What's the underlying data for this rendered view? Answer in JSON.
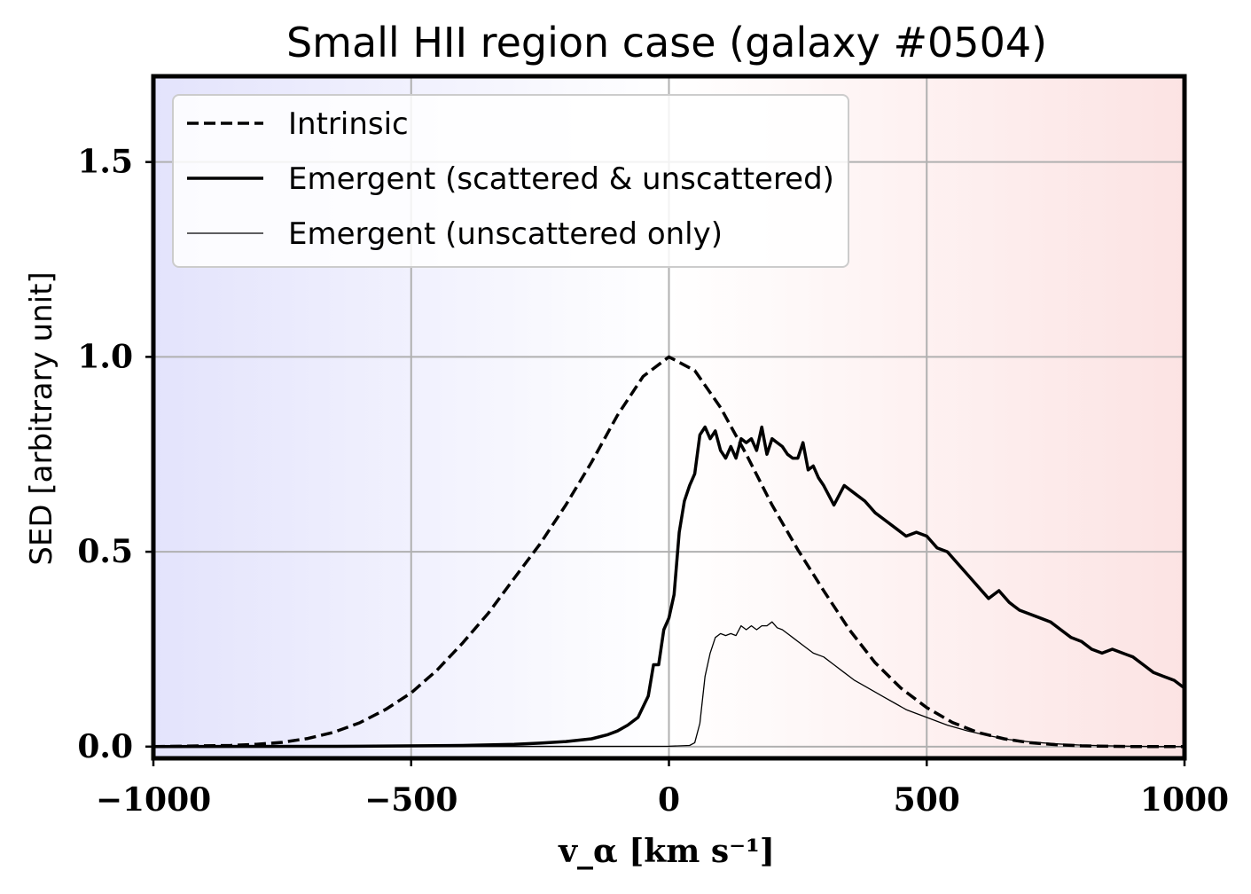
{
  "chart_data": {
    "type": "line",
    "title": "Small HII region case (galaxy #0504)",
    "xlabel": "v_α [km s⁻¹]",
    "ylabel": "SED [arbitrary unit]",
    "xlim": [
      -1000,
      1000
    ],
    "ylim": [
      -0.03,
      1.72
    ],
    "xticks": [
      -1000,
      -500,
      0,
      500,
      1000
    ],
    "xtick_labels": [
      "−1000",
      "−500",
      "0",
      "500",
      "1000"
    ],
    "yticks": [
      0.0,
      0.5,
      1.0,
      1.5
    ],
    "ytick_labels": [
      "0.0",
      "0.5",
      "1.0",
      "1.5"
    ],
    "grid": true,
    "legend_position": "top-left",
    "background": {
      "left_color": "#e3e3fc",
      "middle_color": "#ffffff",
      "right_color": "#fce3e3"
    },
    "series": [
      {
        "name": "Intrinsic",
        "style": "dashed",
        "x": [
          -1000,
          -950,
          -900,
          -850,
          -800,
          -750,
          -700,
          -650,
          -600,
          -550,
          -500,
          -450,
          -400,
          -350,
          -300,
          -250,
          -200,
          -150,
          -100,
          -50,
          0,
          50,
          100,
          150,
          200,
          250,
          300,
          350,
          400,
          450,
          500,
          550,
          600,
          650,
          700,
          750,
          800,
          850,
          900,
          950,
          1000
        ],
        "y": [
          0.0,
          0.001,
          0.002,
          0.003,
          0.006,
          0.011,
          0.021,
          0.037,
          0.061,
          0.095,
          0.138,
          0.196,
          0.266,
          0.343,
          0.432,
          0.52,
          0.62,
          0.73,
          0.85,
          0.95,
          1.0,
          0.965,
          0.87,
          0.75,
          0.62,
          0.505,
          0.4,
          0.3,
          0.215,
          0.15,
          0.1,
          0.062,
          0.036,
          0.02,
          0.01,
          0.005,
          0.002,
          0.001,
          0.0,
          0.0,
          0.0
        ]
      },
      {
        "name": "Emergent (scattered & unscattered)",
        "style": "solid",
        "x": [
          -1000,
          -600,
          -400,
          -300,
          -250,
          -200,
          -150,
          -120,
          -100,
          -80,
          -60,
          -40,
          -30,
          -20,
          -10,
          0,
          10,
          20,
          30,
          40,
          50,
          60,
          70,
          80,
          90,
          100,
          110,
          120,
          130,
          140,
          150,
          160,
          170,
          180,
          190,
          200,
          210,
          220,
          230,
          240,
          250,
          260,
          270,
          280,
          290,
          300,
          320,
          340,
          360,
          380,
          400,
          420,
          440,
          460,
          480,
          500,
          520,
          540,
          560,
          580,
          600,
          620,
          640,
          660,
          680,
          700,
          720,
          740,
          760,
          780,
          800,
          820,
          840,
          860,
          880,
          900,
          920,
          940,
          960,
          980,
          1000
        ],
        "y": [
          0.0,
          0.001,
          0.003,
          0.006,
          0.009,
          0.013,
          0.02,
          0.03,
          0.04,
          0.055,
          0.075,
          0.13,
          0.21,
          0.21,
          0.3,
          0.33,
          0.39,
          0.55,
          0.63,
          0.67,
          0.7,
          0.8,
          0.82,
          0.79,
          0.81,
          0.76,
          0.74,
          0.77,
          0.74,
          0.79,
          0.78,
          0.79,
          0.76,
          0.82,
          0.75,
          0.79,
          0.78,
          0.77,
          0.75,
          0.74,
          0.74,
          0.78,
          0.71,
          0.72,
          0.69,
          0.67,
          0.62,
          0.67,
          0.65,
          0.63,
          0.6,
          0.58,
          0.56,
          0.54,
          0.55,
          0.54,
          0.51,
          0.5,
          0.47,
          0.44,
          0.41,
          0.38,
          0.4,
          0.37,
          0.35,
          0.34,
          0.33,
          0.32,
          0.3,
          0.28,
          0.27,
          0.25,
          0.24,
          0.25,
          0.24,
          0.23,
          0.21,
          0.19,
          0.18,
          0.17,
          0.15
        ]
      },
      {
        "name": "Emergent (unscattered only)",
        "style": "thin",
        "x": [
          -1000,
          0,
          40,
          50,
          60,
          70,
          80,
          90,
          100,
          110,
          120,
          130,
          140,
          150,
          160,
          170,
          180,
          190,
          200,
          210,
          220,
          240,
          260,
          280,
          300,
          320,
          340,
          360,
          380,
          400,
          420,
          440,
          460,
          480,
          500,
          540,
          580,
          620,
          660,
          700,
          750,
          800,
          850,
          900,
          950,
          1000
        ],
        "y": [
          0.0,
          0.001,
          0.003,
          0.01,
          0.06,
          0.18,
          0.24,
          0.28,
          0.29,
          0.285,
          0.29,
          0.285,
          0.31,
          0.3,
          0.31,
          0.3,
          0.31,
          0.31,
          0.32,
          0.305,
          0.3,
          0.28,
          0.26,
          0.24,
          0.23,
          0.21,
          0.19,
          0.17,
          0.155,
          0.14,
          0.125,
          0.11,
          0.095,
          0.085,
          0.075,
          0.055,
          0.04,
          0.028,
          0.018,
          0.012,
          0.007,
          0.004,
          0.002,
          0.001,
          0.0,
          0.0
        ]
      }
    ]
  }
}
